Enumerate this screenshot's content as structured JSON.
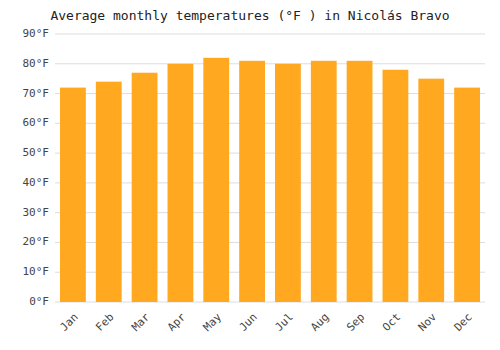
{
  "chart_data": {
    "type": "bar",
    "title": "Average monthly temperatures (°F ) in Nicolás Bravo",
    "categories": [
      "Jan",
      "Feb",
      "Mar",
      "Apr",
      "May",
      "Jun",
      "Jul",
      "Aug",
      "Sep",
      "Oct",
      "Nov",
      "Dec"
    ],
    "values": [
      72,
      74,
      77,
      80,
      82,
      81,
      80,
      81,
      81,
      78,
      75,
      72
    ],
    "color": "#FFA820",
    "ylim": [
      0,
      90
    ],
    "yticks": [
      {
        "value": 0,
        "label": "0°F"
      },
      {
        "value": 10,
        "label": "10°F"
      },
      {
        "value": 20,
        "label": "20°F"
      },
      {
        "value": 30,
        "label": "30°F"
      },
      {
        "value": 40,
        "label": "40°F"
      },
      {
        "value": 50,
        "label": "50°F"
      },
      {
        "value": 60,
        "label": "60°F"
      },
      {
        "value": 70,
        "label": "70°F"
      },
      {
        "value": 80,
        "label": "80°F"
      },
      {
        "value": 90,
        "label": "90°F"
      }
    ],
    "grid": true
  }
}
